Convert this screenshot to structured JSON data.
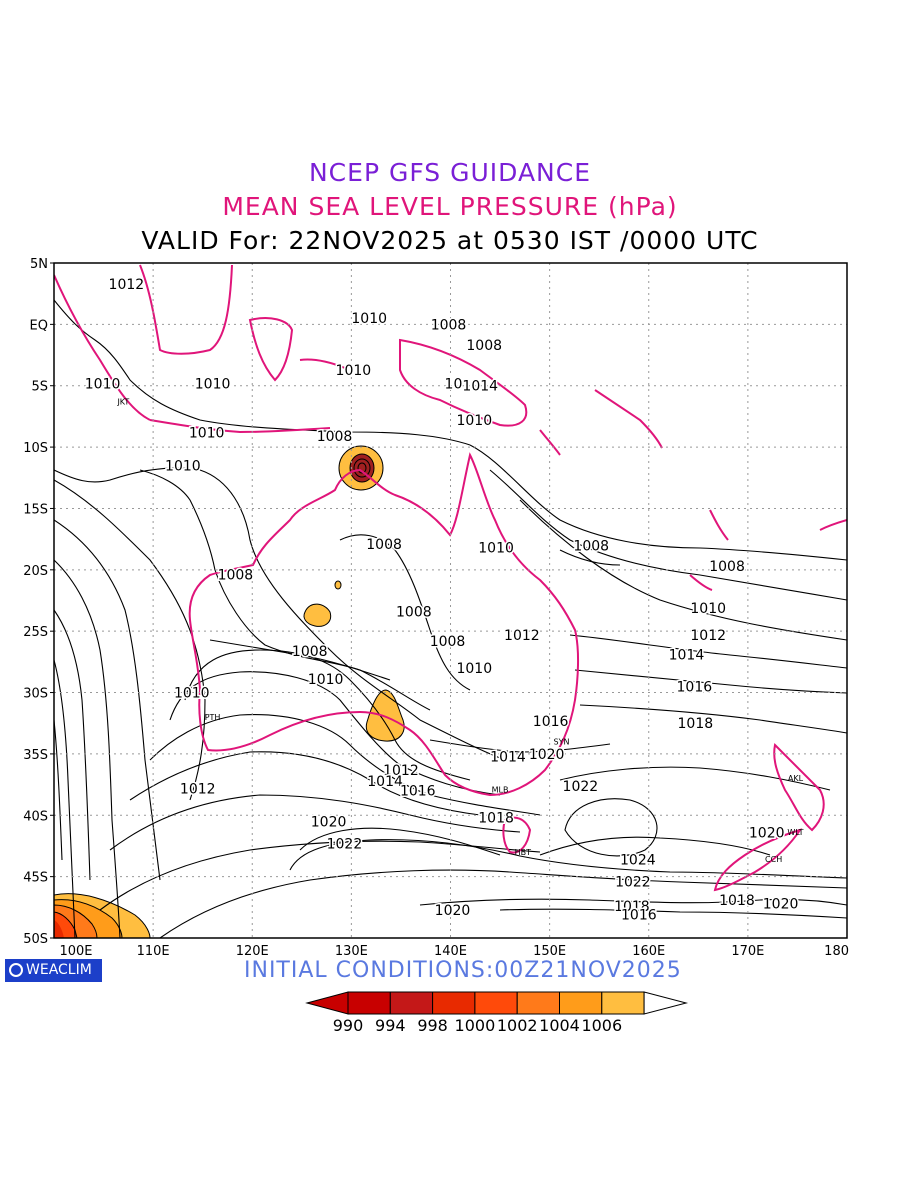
{
  "title_line1": "NCEP GFS GUIDANCE",
  "title_line2": "MEAN SEA LEVEL PRESSURE (hPa)",
  "title_line3": "VALID For: 22NOV2025 at 0530 IST /0000 UTC",
  "initial_conditions": "INITIAL  CONDITIONS:00Z21NOV2025",
  "logo_text": "WEACLIM",
  "colors": {
    "coast": "#e0157a",
    "contour": "#000000",
    "line1": "#7a1fd6",
    "line2": "#e0157a",
    "init": "#5a79e0",
    "logo": "#1c3fc9"
  },
  "map": {
    "lat_labels": [
      "5N",
      "EQ",
      "5S",
      "10S",
      "15S",
      "20S",
      "25S",
      "30S",
      "35S",
      "40S",
      "45S",
      "50S"
    ],
    "lat_values": [
      5,
      0,
      -5,
      -10,
      -15,
      -20,
      -25,
      -30,
      -35,
      -40,
      -45,
      -50
    ],
    "lon_labels": [
      "100E",
      "110E",
      "120E",
      "130E",
      "140E",
      "150E",
      "160E",
      "170E",
      "180"
    ],
    "lon_values": [
      100,
      110,
      120,
      130,
      140,
      150,
      160,
      170,
      180
    ],
    "lon_range": [
      100,
      180
    ],
    "lat_range": [
      -50,
      5
    ],
    "grid": "dotted",
    "city_labels": [
      {
        "text": "JKT",
        "lon": 107.0,
        "lat": -6.2
      },
      {
        "text": "PTH",
        "lon": 116.0,
        "lat": -31.9
      },
      {
        "text": "SYN",
        "lon": 151.2,
        "lat": -33.9
      },
      {
        "text": "MLB",
        "lon": 145.0,
        "lat": -37.8
      },
      {
        "text": "HBT",
        "lon": 147.3,
        "lat": -42.9
      },
      {
        "text": "AKL",
        "lon": 174.8,
        "lat": -36.9
      },
      {
        "text": "WLT",
        "lon": 174.8,
        "lat": -41.3
      },
      {
        "text": "CCH",
        "lon": 172.6,
        "lat": -43.5
      }
    ],
    "contour_labels": [
      {
        "text": "1012",
        "lon": 107.3,
        "lat": 3.3
      },
      {
        "text": "1010",
        "lon": 131.8,
        "lat": 0.5
      },
      {
        "text": "1008",
        "lon": 139.8,
        "lat": 0.0
      },
      {
        "text": "1008",
        "lon": 143.4,
        "lat": -1.7
      },
      {
        "text": "1010",
        "lon": 104.9,
        "lat": -4.8
      },
      {
        "text": "1010",
        "lon": 116.0,
        "lat": -4.8
      },
      {
        "text": "1010",
        "lon": 130.2,
        "lat": -3.7
      },
      {
        "text": "10",
        "lon": 140.3,
        "lat": -4.8
      },
      {
        "text": "1014",
        "lon": 143.0,
        "lat": -5.0
      },
      {
        "text": "1010",
        "lon": 142.4,
        "lat": -7.8
      },
      {
        "text": "1010",
        "lon": 115.4,
        "lat": -8.8
      },
      {
        "text": "1008",
        "lon": 128.3,
        "lat": -9.1
      },
      {
        "text": "1010",
        "lon": 113.0,
        "lat": -11.5
      },
      {
        "text": "1008",
        "lon": 133.3,
        "lat": -17.9
      },
      {
        "text": "1010",
        "lon": 144.6,
        "lat": -18.2
      },
      {
        "text": "1008",
        "lon": 154.2,
        "lat": -18.0
      },
      {
        "text": "1008",
        "lon": 167.9,
        "lat": -19.7
      },
      {
        "text": "1008",
        "lon": 118.3,
        "lat": -20.4
      },
      {
        "text": "1008",
        "lon": 136.3,
        "lat": -23.4
      },
      {
        "text": "1010",
        "lon": 166.0,
        "lat": -23.1
      },
      {
        "text": "1012",
        "lon": 147.2,
        "lat": -25.3
      },
      {
        "text": "1012",
        "lon": 166.0,
        "lat": -25.3
      },
      {
        "text": "1008",
        "lon": 139.7,
        "lat": -25.8
      },
      {
        "text": "1008",
        "lon": 125.8,
        "lat": -26.6
      },
      {
        "text": "1014",
        "lon": 163.8,
        "lat": -26.9
      },
      {
        "text": "1010",
        "lon": 142.4,
        "lat": -28.0
      },
      {
        "text": "1010",
        "lon": 127.4,
        "lat": -28.9
      },
      {
        "text": "1016",
        "lon": 164.6,
        "lat": -29.5
      },
      {
        "text": "1010",
        "lon": 113.9,
        "lat": -30.0
      },
      {
        "text": "1016",
        "lon": 150.1,
        "lat": -32.3
      },
      {
        "text": "1018",
        "lon": 164.7,
        "lat": -32.5
      },
      {
        "text": "1014",
        "lon": 145.8,
        "lat": -35.2
      },
      {
        "text": "1020",
        "lon": 149.7,
        "lat": -35.0
      },
      {
        "text": "1012",
        "lon": 135.0,
        "lat": -36.3
      },
      {
        "text": "1014",
        "lon": 133.4,
        "lat": -37.2
      },
      {
        "text": "1016",
        "lon": 136.7,
        "lat": -38.0
      },
      {
        "text": "1012",
        "lon": 114.5,
        "lat": -37.8
      },
      {
        "text": "1022",
        "lon": 153.1,
        "lat": -37.6
      },
      {
        "text": "1018",
        "lon": 144.6,
        "lat": -40.2
      },
      {
        "text": "1020",
        "lon": 127.7,
        "lat": -40.5
      },
      {
        "text": "1022",
        "lon": 129.3,
        "lat": -42.3
      },
      {
        "text": "1020",
        "lon": 171.9,
        "lat": -41.4
      },
      {
        "text": "1024",
        "lon": 158.9,
        "lat": -43.6
      },
      {
        "text": "1022",
        "lon": 158.4,
        "lat": -45.4
      },
      {
        "text": "1018",
        "lon": 168.9,
        "lat": -46.9
      },
      {
        "text": "1020",
        "lon": 173.3,
        "lat": -47.2
      },
      {
        "text": "1018",
        "lon": 158.3,
        "lat": -47.4
      },
      {
        "text": "1016",
        "lon": 159.0,
        "lat": -48.1
      },
      {
        "text": "1020",
        "lon": 140.2,
        "lat": -47.7
      }
    ]
  },
  "colorbar": {
    "labels": [
      "990",
      "994",
      "998",
      "1000",
      "1002",
      "1004",
      "1006"
    ],
    "colors": [
      "#c80000",
      "#c41818",
      "#e82a00",
      "#ff4a0a",
      "#ff7a1a",
      "#ff9c1a",
      "#ffbe40"
    ]
  }
}
